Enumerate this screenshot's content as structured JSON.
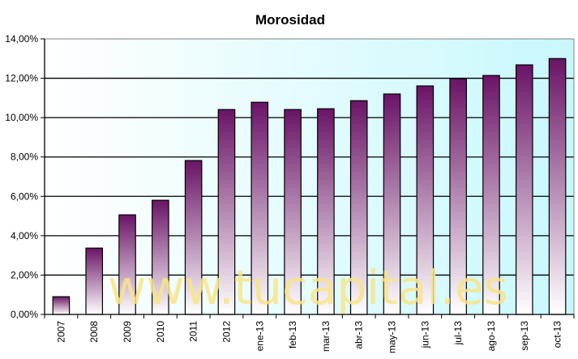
{
  "chart_data": {
    "type": "bar",
    "title": "Morosidad",
    "xlabel": "",
    "ylabel": "",
    "ylim": [
      0,
      14
    ],
    "ytick_values": [
      0,
      2,
      4,
      6,
      8,
      10,
      12,
      14
    ],
    "yticks": [
      "0,00%",
      "2,00%",
      "4,00%",
      "6,00%",
      "8,00%",
      "10,00%",
      "12,00%",
      "14,00%"
    ],
    "grid": true,
    "categories": [
      "2007",
      "2008",
      "2009",
      "2010",
      "2011",
      "2012",
      "ene-13",
      "feb-13",
      "mar-13",
      "abr-13",
      "may-13",
      "jun-13",
      "jul-13",
      "ago-13",
      "sep-13",
      "oct-13"
    ],
    "values": [
      0.9,
      3.37,
      5.06,
      5.8,
      7.82,
      10.41,
      10.78,
      10.41,
      10.45,
      10.86,
      11.2,
      11.61,
      11.98,
      12.14,
      12.68,
      13.0
    ],
    "colors": {
      "bar_top": "#6a1466",
      "bar_bottom": "#ffffff",
      "bg_left": "#ffffff",
      "bg_right": "#c8f8fc"
    },
    "watermark": "www.tucapital.es"
  }
}
